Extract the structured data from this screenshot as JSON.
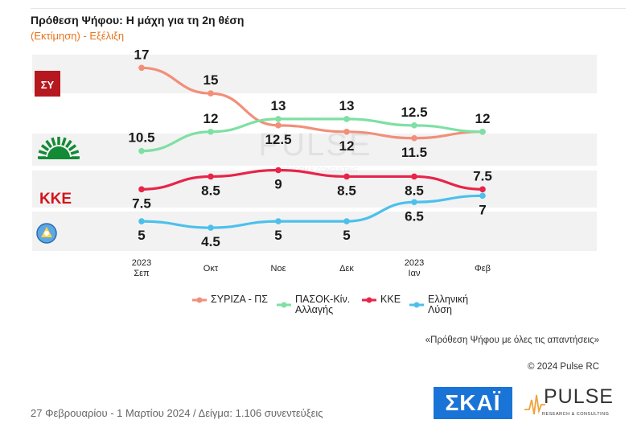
{
  "header": {
    "title": "Πρόθεση Ψήφου: Η μάχη για τη 2η θέση",
    "subtitle": "(Εκτίμηση) - Εξέλιξη"
  },
  "chart_data": {
    "type": "line",
    "title": "Πρόθεση Ψήφου: Η μάχη για τη 2η θέση",
    "subtitle": "(Εκτίμηση) - Εξέλιξη",
    "categories": [
      {
        "line1": "2023",
        "line2": "Σεπ"
      },
      {
        "line1": "",
        "line2": "Οκτ"
      },
      {
        "line1": "",
        "line2": "Νοε"
      },
      {
        "line1": "",
        "line2": "Δεκ"
      },
      {
        "line1": "2023",
        "line2": "Ιαν"
      },
      {
        "line1": "",
        "line2": "Φεβ"
      }
    ],
    "series": [
      {
        "name": "ΣΥΡΙΖΑ - ΠΣ",
        "color": "#f28f79",
        "values": [
          17,
          15,
          12.5,
          12,
          11.5,
          12
        ],
        "label_pos": [
          "above",
          "above",
          "below",
          "below",
          "below",
          "none"
        ]
      },
      {
        "name": "ΠΑΣΟΚ-Κίν. Αλλαγής",
        "color": "#7ee0a4",
        "values": [
          10.5,
          12,
          13,
          13,
          12.5,
          12
        ],
        "label_pos": [
          "above",
          "above",
          "above",
          "above",
          "above",
          "above"
        ]
      },
      {
        "name": "ΚΚΕ",
        "color": "#e8244a",
        "values": [
          7.5,
          8.5,
          9,
          8.5,
          8.5,
          7.5
        ],
        "label_pos": [
          "below",
          "below",
          "below",
          "below",
          "below",
          "above"
        ]
      },
      {
        "name": "Ελληνική Λύση",
        "color": "#4cc0ec",
        "values": [
          5,
          4.5,
          5,
          5,
          6.5,
          7
        ],
        "label_pos": [
          "below",
          "below",
          "below",
          "below",
          "below",
          "below"
        ]
      }
    ],
    "grid": false,
    "legend": "bottom"
  },
  "footnote": "«Πρόθεση Ψήφου με όλες τις απαντήσεις»",
  "copyright": "© 2024 Pulse RC",
  "sample_text": "27 Φεβρουαρίου - 1 Μαρτίου 2024  /  Δείγμα:  1.106 συνεντεύξεις",
  "logos": {
    "skai": "ΣΚΑΪ",
    "pulse": "PULSE",
    "pulse_sub": "RESEARCH & CONSULTING",
    "watermark": "PULSE",
    "watermark_sub": "RESEARCH & CONSULTING",
    "syriza_mark": "ΣΥ",
    "kke_mark": "ΚΚΕ"
  }
}
